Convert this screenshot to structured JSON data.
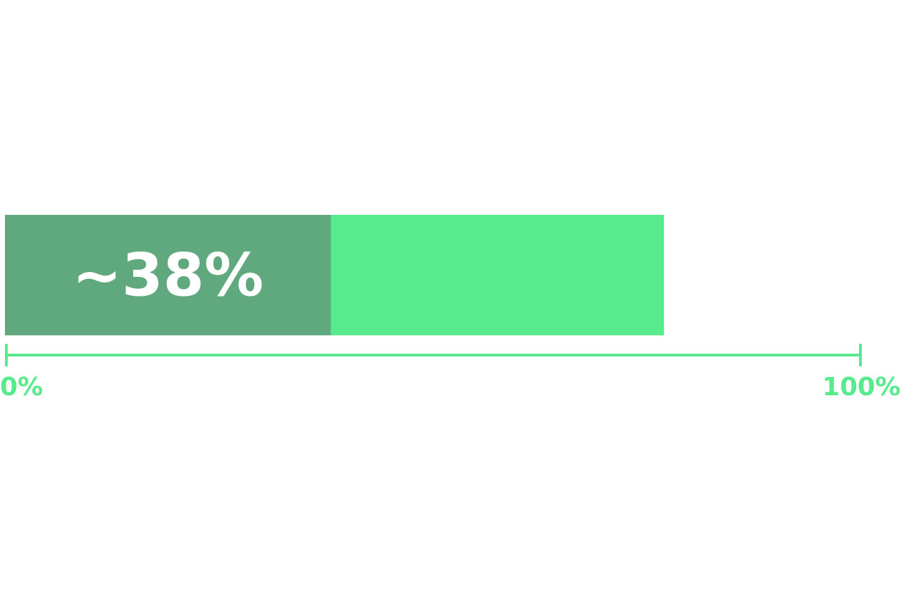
{
  "chart_data": {
    "type": "bar",
    "orientation": "horizontal",
    "stacked": true,
    "xlim": [
      0,
      100
    ],
    "segments": [
      {
        "value": 38,
        "label": "~38%",
        "color": "#60A87D"
      },
      {
        "value": 39,
        "label": "",
        "color": "#58EB8E"
      }
    ],
    "axis": {
      "min_label": "0%",
      "max_label": "100%",
      "color": "#58EB8E"
    },
    "grid": false,
    "legend": "none"
  }
}
